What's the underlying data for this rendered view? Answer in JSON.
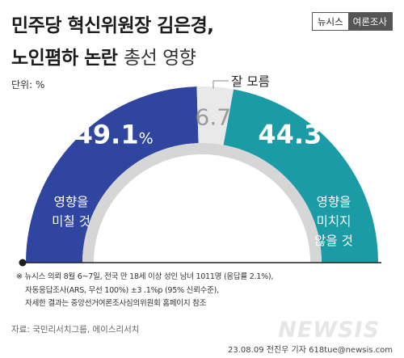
{
  "header": {
    "title_line1": "민주당 혁신위원장 김은경,",
    "title_line2_bold": "노인폄하 논란",
    "title_line2_regular": "총선 영향",
    "brand_left": "뉴시스",
    "brand_right": "여론조사"
  },
  "unit_label": "단위: %",
  "chart_data": {
    "type": "pie",
    "title": "민주당 혁신위원장 김은경, 노인폄하 논란 총선 영향",
    "unit": "%",
    "categories": [
      "영향을 미칠 것",
      "잘 모름",
      "영향을 미치지 않을 것"
    ],
    "values": [
      49.1,
      6.7,
      44.3
    ],
    "value_labels": [
      "49.1",
      "6.7",
      "44.3"
    ],
    "percent_sign": "%",
    "label_lines": [
      [
        "영향을",
        "미칠 것"
      ],
      [
        "잘 모름"
      ],
      [
        "영향을",
        "미치지",
        "않을 것"
      ]
    ],
    "colors": [
      "#2f45a0",
      "#e9e9e9",
      "#1b9ba5"
    ],
    "shadow_color": "#d6d6d6",
    "text_colors": [
      "#ffffff",
      "#9a9a9a",
      "#ffffff"
    ]
  },
  "notes": {
    "symbol": "※",
    "line1": "뉴시스 의뢰 8월 6~7일, 전국 만 18세 이상 성인 남녀 1011명 (응답률 2.1%),",
    "line2": "자동응답조사(ARS, 무선 100%) ±3 .1%p (95% 신뢰수준),",
    "line3": "자세한 결과는 중앙선거여론조사심의위원회 홈페이지 참조"
  },
  "source": "자료: 국민리서치그룹, 에이스리서치",
  "watermark": "NEWSIS",
  "credit": "23.08.09 전진우 기자 618tue@newsis.com"
}
